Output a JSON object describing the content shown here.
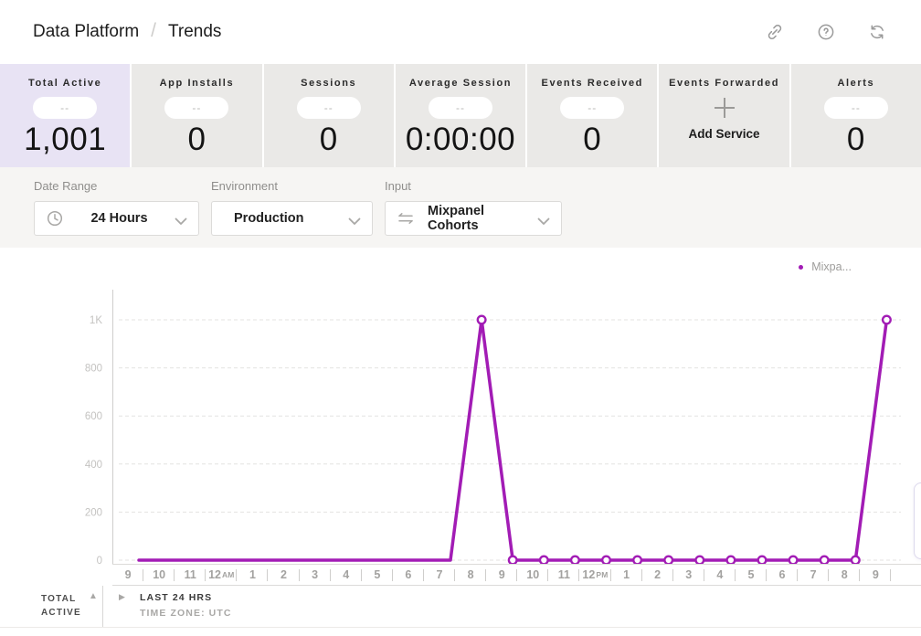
{
  "header": {
    "breadcrumb": {
      "parent": "Data Platform",
      "separator": "/",
      "current": "Trends"
    },
    "icons": [
      "link",
      "help",
      "refresh"
    ]
  },
  "metrics": {
    "cards": [
      {
        "label": "Total Active",
        "badge": "--",
        "value": "1,001",
        "selected": true
      },
      {
        "label": "App Installs",
        "badge": "--",
        "value": "0"
      },
      {
        "label": "Sessions",
        "badge": "--",
        "value": "0"
      },
      {
        "label": "Average Session",
        "badge": "--",
        "value": "0:00:00"
      },
      {
        "label": "Events Received",
        "badge": "--",
        "value": "0"
      },
      {
        "label": "Events Forwarded",
        "action": "Add Service",
        "icon": "plus"
      },
      {
        "label": "Alerts",
        "badge": "--",
        "value": "0"
      }
    ]
  },
  "filters": [
    {
      "label": "Date Range",
      "value": "24 Hours",
      "icon": "clock"
    },
    {
      "label": "Environment",
      "value": "Production",
      "icon": null
    },
    {
      "label": "Input",
      "value": "Mixpanel Cohorts",
      "icon": "exchange-arrows"
    }
  ],
  "legend": {
    "label": "Mixpa...",
    "color": "#a21cb5"
  },
  "chart_data": {
    "type": "line",
    "categories": [
      "9",
      "10",
      "11",
      "12AM",
      "1",
      "2",
      "3",
      "4",
      "5",
      "6",
      "7",
      "8",
      "9",
      "10",
      "11",
      "12PM",
      "1",
      "2",
      "3",
      "4",
      "5",
      "6",
      "7",
      "8",
      "9"
    ],
    "series": [
      {
        "name": "Mixpanel Cohorts",
        "color": "#a21cb5",
        "values": [
          0,
          0,
          0,
          0,
          0,
          0,
          0,
          0,
          0,
          0,
          0,
          1000,
          0,
          0,
          0,
          0,
          0,
          0,
          0,
          0,
          0,
          0,
          0,
          0,
          1000
        ]
      }
    ],
    "yticks": [
      {
        "label": "1K",
        "value": 1000
      },
      {
        "label": "800",
        "value": 800
      },
      {
        "label": "600",
        "value": 600
      },
      {
        "label": "400",
        "value": 400
      },
      {
        "label": "200",
        "value": 200
      },
      {
        "label": "0",
        "value": 0
      }
    ],
    "ylim": [
      0,
      1000
    ],
    "grid": "dashed-horizontal",
    "legend_position": "top-right",
    "marker_from_index": 11
  },
  "footer": {
    "metric_label": "TOTAL ACTIVE",
    "range_label": "LAST 24 HRS",
    "timezone_label": "TIME ZONE: UTC"
  }
}
